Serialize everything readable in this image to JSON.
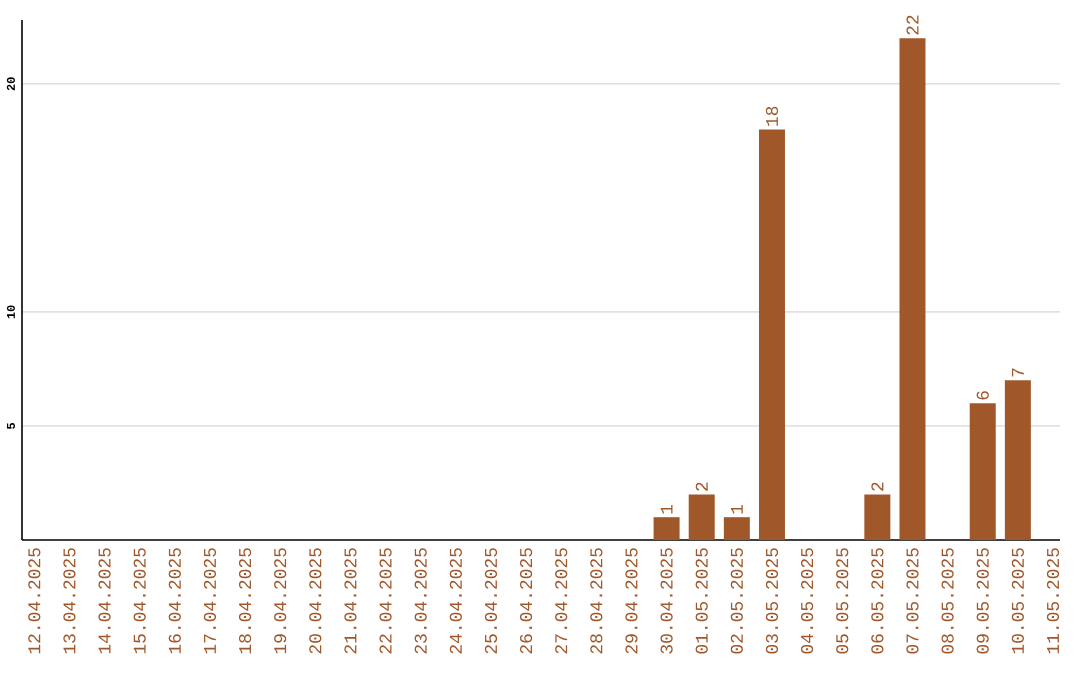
{
  "chart_data": {
    "type": "bar",
    "categories": [
      "12.04.2025",
      "13.04.2025",
      "14.04.2025",
      "15.04.2025",
      "16.04.2025",
      "17.04.2025",
      "18.04.2025",
      "19.04.2025",
      "20.04.2025",
      "21.04.2025",
      "22.04.2025",
      "23.04.2025",
      "24.04.2025",
      "25.04.2025",
      "26.04.2025",
      "27.04.2025",
      "28.04.2025",
      "29.04.2025",
      "30.04.2025",
      "01.05.2025",
      "02.05.2025",
      "03.05.2025",
      "04.05.2025",
      "05.05.2025",
      "06.05.2025",
      "07.05.2025",
      "08.05.2025",
      "09.05.2025",
      "10.05.2025",
      "11.05.2025"
    ],
    "values": [
      0,
      0,
      0,
      0,
      0,
      0,
      0,
      0,
      0,
      0,
      0,
      0,
      0,
      0,
      0,
      0,
      0,
      0,
      1,
      2,
      1,
      18,
      0,
      0,
      2,
      22,
      0,
      6,
      7,
      0
    ],
    "value_labels": [
      null,
      null,
      null,
      null,
      null,
      null,
      null,
      null,
      null,
      null,
      null,
      null,
      null,
      null,
      null,
      null,
      null,
      null,
      "1",
      "2",
      "1",
      "18",
      null,
      null,
      "2",
      "22",
      null,
      "6",
      "7",
      null
    ],
    "color": "#a0572a",
    "ylim": [
      0,
      22.8
    ],
    "yticks": [
      5,
      10,
      20
    ],
    "grid": "y"
  }
}
